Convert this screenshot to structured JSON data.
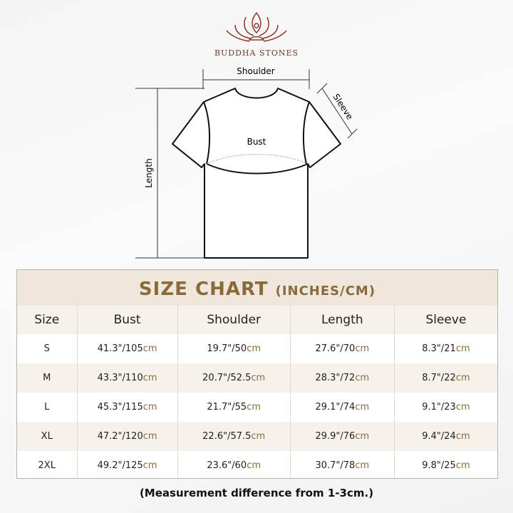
{
  "brand": {
    "name": "BUDDHA STONES",
    "accent": "#8a6a3c"
  },
  "diagram": {
    "shoulder": "Shoulder",
    "sleeve": "Sleeve",
    "bust": "Bust",
    "length": "Length"
  },
  "table": {
    "title": "SIZE CHART",
    "title_units": "(INCHES/CM)",
    "headers": [
      "Size",
      "Bust",
      "Shoulder",
      "Length",
      "Sleeve"
    ],
    "rows": [
      {
        "size": "S",
        "values": [
          [
            "41.3\"/105",
            "cm"
          ],
          [
            "19.7\"/50",
            "cm"
          ],
          [
            "27.6\"/70",
            "cm"
          ],
          [
            "8.3\"/21",
            "cm"
          ]
        ]
      },
      {
        "size": "M",
        "values": [
          [
            "43.3\"/110",
            "cm"
          ],
          [
            "20.7\"/52.5",
            "cm"
          ],
          [
            "28.3\"/72",
            "cm"
          ],
          [
            "8.7\"/22",
            "cm"
          ]
        ]
      },
      {
        "size": "L",
        "values": [
          [
            "45.3\"/115",
            "cm"
          ],
          [
            "21.7\"/55",
            "cm"
          ],
          [
            "29.1\"/74",
            "cm"
          ],
          [
            "9.1\"/23",
            "cm"
          ]
        ]
      },
      {
        "size": "XL",
        "values": [
          [
            "47.2\"/120",
            "cm"
          ],
          [
            "22.6\"/57.5",
            "cm"
          ],
          [
            "29.9\"/76",
            "cm"
          ],
          [
            "9.4\"/24",
            "cm"
          ]
        ]
      },
      {
        "size": "2XL",
        "values": [
          [
            "49.2\"/125",
            "cm"
          ],
          [
            "23.6\"/60",
            "cm"
          ],
          [
            "30.7\"/78",
            "cm"
          ],
          [
            "9.8\"/25",
            "cm"
          ]
        ]
      }
    ]
  },
  "note": "(Measurement difference from 1-3cm.)"
}
